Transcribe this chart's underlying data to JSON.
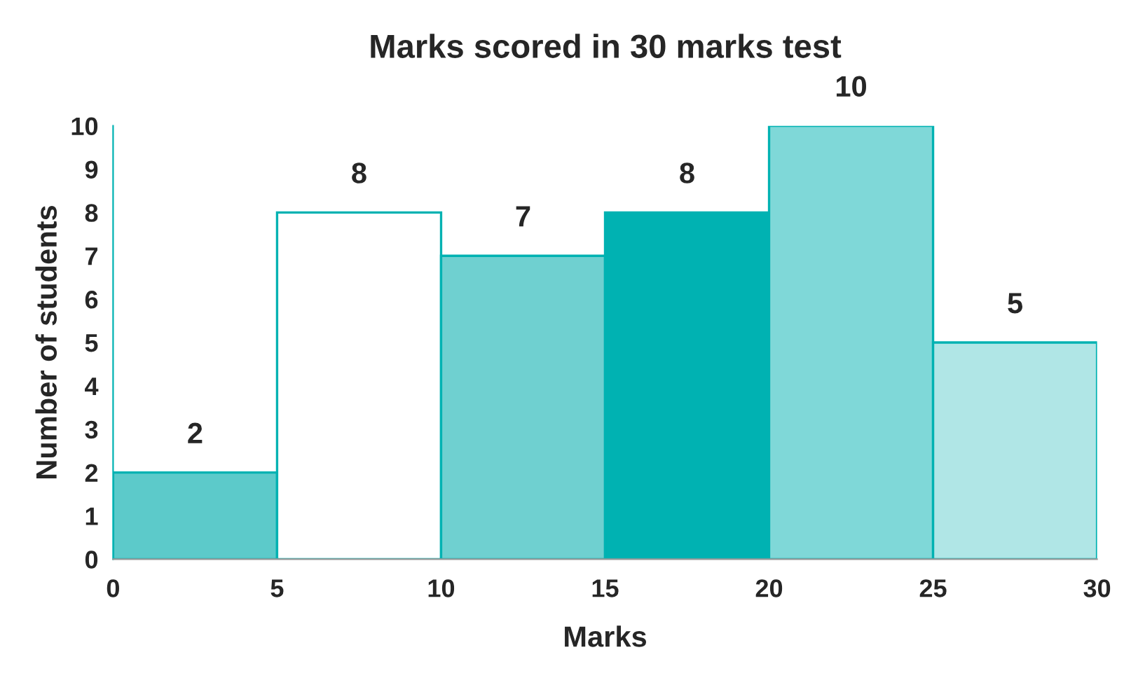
{
  "chart_data": {
    "type": "histogram",
    "title": "Marks scored in 30 marks test",
    "xlabel": "Marks",
    "ylabel": "Number of students",
    "bins": [
      0,
      5,
      10,
      15,
      20,
      25,
      30
    ],
    "values": [
      2,
      8,
      7,
      8,
      10,
      5
    ],
    "colors": [
      "#5ccaca",
      "#ffffff",
      "#6fd0d0",
      "#00b2b2",
      "#7fd8d8",
      "#b0e6e6"
    ],
    "xlim": [
      0,
      30
    ],
    "xticks": [
      0,
      5,
      10,
      15,
      20,
      25,
      30
    ],
    "ylim": [
      0,
      10
    ],
    "yticks": [
      0,
      1,
      2,
      3,
      4,
      5,
      6,
      7,
      8,
      9,
      10
    ],
    "data_labels": true,
    "grid": false,
    "legend": false
  }
}
